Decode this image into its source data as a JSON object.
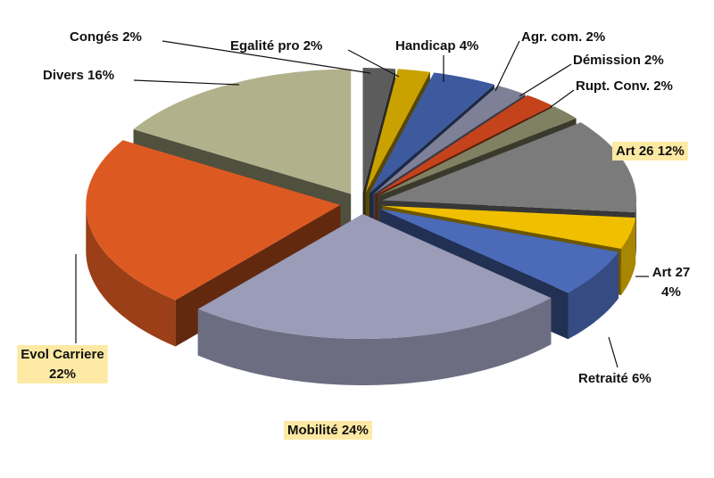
{
  "chart_data": {
    "type": "pie3d",
    "categories": [
      "Congés",
      "Egalité pro",
      "Handicap",
      "Agr. com.",
      "Démission",
      "Rupt. Conv.",
      "Art 26",
      "Art 27",
      "Retraité",
      "Mobilité",
      "Evol Carriere",
      "Divers"
    ],
    "values": [
      2,
      2,
      4,
      2,
      2,
      2,
      12,
      4,
      6,
      24,
      22,
      16
    ],
    "value_labels": [
      "2%",
      "2%",
      "4%",
      "2%",
      "2%",
      "2%",
      "12%",
      "4%",
      "6%",
      "24%",
      "22%",
      "16%"
    ],
    "colors": [
      "#5c5c5c",
      "#c9a100",
      "#3e5a9e",
      "#7d8096",
      "#c4431b",
      "#7f8162",
      "#7b7b7b",
      "#f0c000",
      "#4b6bb8",
      "#9a9cb8",
      "#dc5a22",
      "#b1b18b"
    ],
    "label_highlight": [
      false,
      false,
      false,
      false,
      false,
      false,
      true,
      false,
      false,
      true,
      true,
      false
    ]
  }
}
